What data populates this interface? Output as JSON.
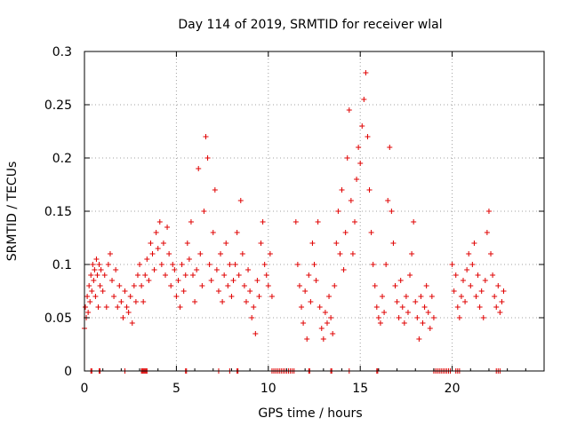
{
  "chart_data": {
    "type": "scatter",
    "title": "Day 114 of 2019, SRMTID for receiver wlal",
    "xlabel": "GPS time / hours",
    "ylabel": "SRMTID / TECUs",
    "xlim": [
      0,
      25
    ],
    "ylim": [
      0,
      0.3
    ],
    "x_ticks": [
      0,
      5,
      10,
      15,
      20
    ],
    "y_ticks": [
      0,
      0.05,
      0.1,
      0.15,
      0.2,
      0.25,
      0.3
    ],
    "x_tick_labels": [
      "0",
      "5",
      "10",
      "15",
      "20"
    ],
    "y_tick_labels": [
      "0",
      "0.05",
      "0.1",
      "0.15",
      "0.2",
      "0.25",
      "0.3"
    ],
    "grid": true,
    "marker": "+",
    "color": "#e00000",
    "series": [
      {
        "name": "SRMTID",
        "points": [
          [
            0.0,
            0.04
          ],
          [
            0.05,
            0.06
          ],
          [
            0.1,
            0.05
          ],
          [
            0.15,
            0.07
          ],
          [
            0.2,
            0.055
          ],
          [
            0.25,
            0.08
          ],
          [
            0.3,
            0.065
          ],
          [
            0.35,
            0.09
          ],
          [
            0.4,
            0.075
          ],
          [
            0.45,
            0.1
          ],
          [
            0.5,
            0.085
          ],
          [
            0.55,
            0.095
          ],
          [
            0.6,
            0.07
          ],
          [
            0.65,
            0.105
          ],
          [
            0.7,
            0.09
          ],
          [
            0.75,
            0.06
          ],
          [
            0.8,
            0.1
          ],
          [
            0.85,
            0.08
          ],
          [
            0.9,
            0.095
          ],
          [
            1.0,
            0.075
          ],
          [
            1.1,
            0.09
          ],
          [
            1.2,
            0.06
          ],
          [
            1.3,
            0.1
          ],
          [
            1.4,
            0.11
          ],
          [
            1.5,
            0.085
          ],
          [
            1.6,
            0.07
          ],
          [
            1.7,
            0.095
          ],
          [
            1.8,
            0.06
          ],
          [
            1.9,
            0.08
          ],
          [
            2.0,
            0.065
          ],
          [
            2.1,
            0.05
          ],
          [
            2.2,
            0.075
          ],
          [
            2.3,
            0.06
          ],
          [
            2.4,
            0.055
          ],
          [
            2.5,
            0.07
          ],
          [
            2.6,
            0.045
          ],
          [
            2.7,
            0.08
          ],
          [
            2.8,
            0.065
          ],
          [
            2.9,
            0.09
          ],
          [
            3.0,
            0.1
          ],
          [
            3.1,
            0.08
          ],
          [
            3.2,
            0.065
          ],
          [
            3.3,
            0.09
          ],
          [
            3.4,
            0.105
          ],
          [
            3.5,
            0.085
          ],
          [
            3.6,
            0.12
          ],
          [
            3.7,
            0.11
          ],
          [
            3.8,
            0.095
          ],
          [
            3.9,
            0.13
          ],
          [
            4.0,
            0.115
          ],
          [
            4.1,
            0.14
          ],
          [
            4.2,
            0.1
          ],
          [
            4.3,
            0.12
          ],
          [
            4.4,
            0.09
          ],
          [
            4.5,
            0.135
          ],
          [
            4.6,
            0.11
          ],
          [
            4.7,
            0.08
          ],
          [
            4.8,
            0.1
          ],
          [
            4.9,
            0.095
          ],
          [
            5.0,
            0.07
          ],
          [
            5.1,
            0.085
          ],
          [
            5.2,
            0.06
          ],
          [
            5.3,
            0.1
          ],
          [
            5.4,
            0.075
          ],
          [
            5.5,
            0.09
          ],
          [
            5.6,
            0.12
          ],
          [
            5.7,
            0.105
          ],
          [
            5.8,
            0.14
          ],
          [
            5.9,
            0.09
          ],
          [
            6.0,
            0.065
          ],
          [
            6.1,
            0.095
          ],
          [
            6.2,
            0.19
          ],
          [
            6.3,
            0.11
          ],
          [
            6.4,
            0.08
          ],
          [
            6.5,
            0.15
          ],
          [
            6.6,
            0.22
          ],
          [
            6.7,
            0.2
          ],
          [
            6.8,
            0.1
          ],
          [
            6.9,
            0.085
          ],
          [
            7.0,
            0.13
          ],
          [
            7.1,
            0.17
          ],
          [
            7.2,
            0.095
          ],
          [
            7.3,
            0.075
          ],
          [
            7.4,
            0.11
          ],
          [
            7.5,
            0.065
          ],
          [
            7.6,
            0.09
          ],
          [
            7.7,
            0.12
          ],
          [
            7.8,
            0.08
          ],
          [
            7.9,
            0.1
          ],
          [
            8.0,
            0.07
          ],
          [
            8.1,
            0.085
          ],
          [
            8.2,
            0.1
          ],
          [
            8.3,
            0.13
          ],
          [
            8.4,
            0.09
          ],
          [
            8.5,
            0.16
          ],
          [
            8.6,
            0.11
          ],
          [
            8.7,
            0.08
          ],
          [
            8.8,
            0.065
          ],
          [
            8.9,
            0.095
          ],
          [
            9.0,
            0.075
          ],
          [
            9.1,
            0.05
          ],
          [
            9.2,
            0.06
          ],
          [
            9.3,
            0.035
          ],
          [
            9.4,
            0.085
          ],
          [
            9.5,
            0.07
          ],
          [
            9.6,
            0.12
          ],
          [
            9.7,
            0.14
          ],
          [
            9.8,
            0.1
          ],
          [
            9.9,
            0.09
          ],
          [
            10.0,
            0.08
          ],
          [
            10.1,
            0.11
          ],
          [
            10.2,
            0.07
          ],
          [
            11.5,
            0.14
          ],
          [
            11.6,
            0.1
          ],
          [
            11.7,
            0.08
          ],
          [
            11.8,
            0.06
          ],
          [
            11.9,
            0.045
          ],
          [
            12.0,
            0.075
          ],
          [
            12.1,
            0.03
          ],
          [
            12.2,
            0.09
          ],
          [
            12.3,
            0.065
          ],
          [
            12.4,
            0.12
          ],
          [
            12.5,
            0.1
          ],
          [
            12.6,
            0.085
          ],
          [
            12.7,
            0.14
          ],
          [
            12.8,
            0.06
          ],
          [
            12.9,
            0.04
          ],
          [
            13.0,
            0.03
          ],
          [
            13.1,
            0.055
          ],
          [
            13.2,
            0.045
          ],
          [
            13.3,
            0.07
          ],
          [
            13.4,
            0.05
          ],
          [
            13.5,
            0.035
          ],
          [
            13.6,
            0.08
          ],
          [
            13.7,
            0.12
          ],
          [
            13.8,
            0.15
          ],
          [
            13.9,
            0.11
          ],
          [
            14.0,
            0.17
          ],
          [
            14.1,
            0.095
          ],
          [
            14.2,
            0.13
          ],
          [
            14.3,
            0.2
          ],
          [
            14.4,
            0.245
          ],
          [
            14.5,
            0.16
          ],
          [
            14.6,
            0.11
          ],
          [
            14.7,
            0.14
          ],
          [
            14.8,
            0.18
          ],
          [
            14.9,
            0.21
          ],
          [
            15.0,
            0.195
          ],
          [
            15.1,
            0.23
          ],
          [
            15.2,
            0.255
          ],
          [
            15.3,
            0.28
          ],
          [
            15.4,
            0.22
          ],
          [
            15.5,
            0.17
          ],
          [
            15.6,
            0.13
          ],
          [
            15.7,
            0.1
          ],
          [
            15.8,
            0.08
          ],
          [
            15.9,
            0.06
          ],
          [
            16.0,
            0.05
          ],
          [
            16.1,
            0.045
          ],
          [
            16.2,
            0.07
          ],
          [
            16.3,
            0.055
          ],
          [
            16.4,
            0.1
          ],
          [
            16.5,
            0.16
          ],
          [
            16.6,
            0.21
          ],
          [
            16.7,
            0.15
          ],
          [
            16.8,
            0.12
          ],
          [
            16.9,
            0.08
          ],
          [
            17.0,
            0.065
          ],
          [
            17.1,
            0.05
          ],
          [
            17.2,
            0.085
          ],
          [
            17.3,
            0.06
          ],
          [
            17.4,
            0.045
          ],
          [
            17.5,
            0.07
          ],
          [
            17.6,
            0.055
          ],
          [
            17.7,
            0.09
          ],
          [
            17.8,
            0.11
          ],
          [
            17.9,
            0.14
          ],
          [
            18.0,
            0.065
          ],
          [
            18.1,
            0.05
          ],
          [
            18.2,
            0.03
          ],
          [
            18.3,
            0.07
          ],
          [
            18.4,
            0.045
          ],
          [
            18.5,
            0.06
          ],
          [
            18.6,
            0.08
          ],
          [
            18.7,
            0.055
          ],
          [
            18.8,
            0.04
          ],
          [
            18.9,
            0.07
          ],
          [
            19.0,
            0.05
          ],
          [
            20.0,
            0.1
          ],
          [
            20.1,
            0.075
          ],
          [
            20.2,
            0.09
          ],
          [
            20.3,
            0.06
          ],
          [
            20.4,
            0.05
          ],
          [
            20.5,
            0.07
          ],
          [
            20.6,
            0.085
          ],
          [
            20.7,
            0.065
          ],
          [
            20.8,
            0.095
          ],
          [
            20.9,
            0.11
          ],
          [
            21.0,
            0.08
          ],
          [
            21.1,
            0.1
          ],
          [
            21.2,
            0.12
          ],
          [
            21.3,
            0.07
          ],
          [
            21.4,
            0.09
          ],
          [
            21.5,
            0.06
          ],
          [
            21.6,
            0.075
          ],
          [
            21.7,
            0.05
          ],
          [
            21.8,
            0.085
          ],
          [
            21.9,
            0.13
          ],
          [
            22.0,
            0.15
          ],
          [
            22.1,
            0.11
          ],
          [
            22.2,
            0.09
          ],
          [
            22.3,
            0.07
          ],
          [
            22.4,
            0.06
          ],
          [
            22.5,
            0.08
          ],
          [
            22.6,
            0.055
          ],
          [
            22.7,
            0.065
          ],
          [
            22.8,
            0.075
          ]
        ]
      }
    ],
    "zero_markers_x": [
      0.35,
      0.4,
      0.8,
      0.85,
      2.2,
      3.1,
      3.15,
      3.2,
      3.25,
      3.3,
      3.35,
      3.4,
      5.5,
      5.55,
      7.3,
      7.9,
      8.3,
      8.35,
      10.2,
      10.3,
      10.4,
      10.5,
      10.6,
      10.7,
      10.8,
      10.9,
      11.0,
      11.1,
      11.2,
      11.3,
      11.4,
      12.2,
      12.25,
      13.4,
      13.45,
      14.4,
      15.9,
      15.95,
      19.0,
      19.1,
      19.2,
      19.3,
      19.4,
      19.5,
      19.6,
      19.7,
      19.8,
      19.9,
      20.2,
      20.3,
      20.4,
      22.4,
      22.5,
      22.6
    ]
  }
}
